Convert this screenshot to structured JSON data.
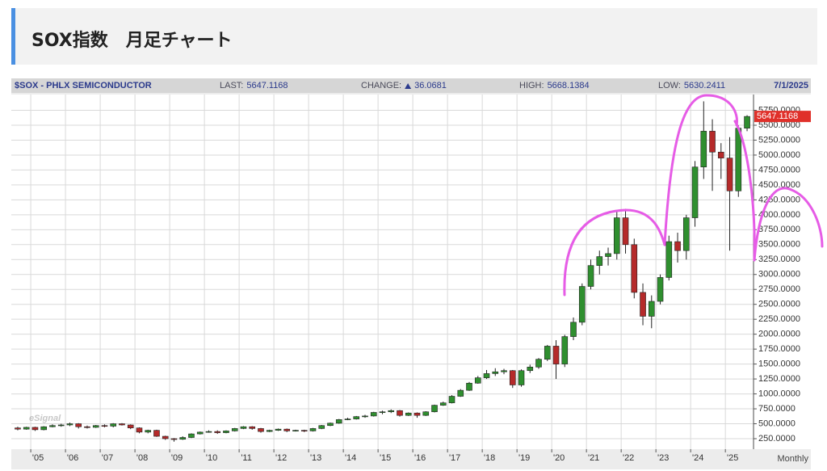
{
  "page": {
    "title": "SOX指数　月足チャート"
  },
  "chart_data": {
    "type": "candlestick",
    "title": "$SOX - PHLX SEMICONDUCTOR",
    "date": "7/1/2025",
    "stats": [
      {
        "label": "LAST:",
        "value": 5647.1168
      },
      {
        "label": "CHANGE:",
        "value": 36.0681
      },
      {
        "label": "HIGH:",
        "value": 5668.1384
      },
      {
        "label": "LOW:",
        "value": 5630.2411
      }
    ],
    "last_price": 5647.1168,
    "watermark": "eSignal",
    "x_unit_label": "Monthly",
    "up_color": "#2f8f2f",
    "down_color": "#b52a2a",
    "grid": true,
    "xlim": [
      2004.44,
      2025.81
    ],
    "ylim": [
      74,
      6014
    ],
    "xticks": [
      {
        "value": 2005,
        "label": "'05"
      },
      {
        "value": 2006,
        "label": "'06"
      },
      {
        "value": 2007,
        "label": "'07"
      },
      {
        "value": 2008,
        "label": "'08"
      },
      {
        "value": 2009,
        "label": "'09"
      },
      {
        "value": 2010,
        "label": "'10"
      },
      {
        "value": 2011,
        "label": "'11"
      },
      {
        "value": 2012,
        "label": "'12"
      },
      {
        "value": 2013,
        "label": "'13"
      },
      {
        "value": 2014,
        "label": "'14"
      },
      {
        "value": 2015,
        "label": "'15"
      },
      {
        "value": 2016,
        "label": "'16"
      },
      {
        "value": 2017,
        "label": "'17"
      },
      {
        "value": 2018,
        "label": "'18"
      },
      {
        "value": 2019,
        "label": "'19"
      },
      {
        "value": 2020,
        "label": "'20"
      },
      {
        "value": 2021,
        "label": "'21"
      },
      {
        "value": 2022,
        "label": "'22"
      },
      {
        "value": 2023,
        "label": "'23"
      },
      {
        "value": 2024,
        "label": "'24"
      },
      {
        "value": 2025,
        "label": "'25"
      }
    ],
    "yticks": [
      {
        "value": 250,
        "label": "250.0000"
      },
      {
        "value": 500,
        "label": "500.0000"
      },
      {
        "value": 750,
        "label": "750.0000"
      },
      {
        "value": 1000,
        "label": "1000.0000"
      },
      {
        "value": 1250,
        "label": "1250.0000"
      },
      {
        "value": 1500,
        "label": "1500.0000"
      },
      {
        "value": 1750,
        "label": "1750.0000"
      },
      {
        "value": 2000,
        "label": "2000.0000"
      },
      {
        "value": 2250,
        "label": "2250.0000"
      },
      {
        "value": 2500,
        "label": "2500.0000"
      },
      {
        "value": 2750,
        "label": "2750.0000"
      },
      {
        "value": 3000,
        "label": "3000.0000"
      },
      {
        "value": 3250,
        "label": "3250.0000"
      },
      {
        "value": 3500,
        "label": "3500.0000"
      },
      {
        "value": 3750,
        "label": "3750.0000"
      },
      {
        "value": 4000,
        "label": "4000.0000"
      },
      {
        "value": 4250,
        "label": "4250.0000"
      },
      {
        "value": 4500,
        "label": "4500.0000"
      },
      {
        "value": 4750,
        "label": "4750.0000"
      },
      {
        "value": 5000,
        "label": "5000.0000"
      },
      {
        "value": 5250,
        "label": "5250.0000"
      },
      {
        "value": 5500,
        "label": "5500.0000"
      },
      {
        "value": 5750,
        "label": "5750.0000"
      }
    ],
    "x": [
      2004.625,
      2004.875,
      2005.125,
      2005.375,
      2005.625,
      2005.875,
      2006.125,
      2006.375,
      2006.625,
      2006.875,
      2007.125,
      2007.375,
      2007.625,
      2007.875,
      2008.125,
      2008.375,
      2008.625,
      2008.875,
      2009.125,
      2009.375,
      2009.625,
      2009.875,
      2010.125,
      2010.375,
      2010.625,
      2010.875,
      2011.125,
      2011.375,
      2011.625,
      2011.875,
      2012.125,
      2012.375,
      2012.625,
      2012.875,
      2013.125,
      2013.375,
      2013.625,
      2013.875,
      2014.125,
      2014.375,
      2014.625,
      2014.875,
      2015.125,
      2015.375,
      2015.625,
      2015.875,
      2016.125,
      2016.375,
      2016.625,
      2016.875,
      2017.125,
      2017.375,
      2017.625,
      2017.875,
      2018.125,
      2018.375,
      2018.625,
      2018.875,
      2019.125,
      2019.375,
      2019.625,
      2019.875,
      2020.125,
      2020.375,
      2020.625,
      2020.875,
      2021.125,
      2021.375,
      2021.625,
      2021.875,
      2022.125,
      2022.375,
      2022.625,
      2022.875,
      2023.125,
      2023.375,
      2023.625,
      2023.875,
      2024.125,
      2024.375,
      2024.625,
      2024.875,
      2025.125,
      2025.375,
      2025.625
    ],
    "open": [
      430,
      410,
      440,
      400,
      450,
      470,
      480,
      500,
      450,
      440,
      470,
      460,
      500,
      480,
      430,
      360,
      390,
      290,
      250,
      240,
      270,
      330,
      360,
      370,
      350,
      380,
      420,
      450,
      420,
      370,
      390,
      410,
      380,
      390,
      380,
      420,
      470,
      510,
      570,
      580,
      620,
      630,
      690,
      700,
      720,
      640,
      680,
      640,
      700,
      810,
      850,
      960,
      1060,
      1180,
      1270,
      1340,
      1370,
      1390,
      1150,
      1390,
      1450,
      1580,
      1800,
      1500,
      1960,
      2200,
      2800,
      3150,
      3300,
      3350,
      3950,
      3500,
      2700,
      2300,
      2550,
      2950,
      3550,
      3400,
      3950,
      4800,
      5400,
      5050,
      4950,
      4400,
      5450
    ],
    "high": [
      450,
      450,
      450,
      460,
      490,
      500,
      520,
      510,
      470,
      480,
      490,
      510,
      510,
      490,
      440,
      400,
      400,
      300,
      260,
      290,
      340,
      370,
      390,
      390,
      390,
      430,
      460,
      460,
      430,
      400,
      420,
      420,
      400,
      400,
      430,
      480,
      520,
      580,
      600,
      630,
      650,
      700,
      720,
      740,
      730,
      690,
      690,
      710,
      820,
      870,
      980,
      1080,
      1200,
      1300,
      1400,
      1430,
      1420,
      1400,
      1410,
      1490,
      1600,
      1820,
      1900,
      1990,
      2280,
      2850,
      3250,
      3400,
      3450,
      4050,
      4100,
      3600,
      2850,
      2650,
      3000,
      3650,
      3700,
      4000,
      4900,
      5900,
      5600,
      5200,
      5300,
      5500,
      5668
    ],
    "low": [
      390,
      400,
      380,
      390,
      440,
      450,
      460,
      420,
      420,
      430,
      440,
      440,
      470,
      410,
      340,
      340,
      280,
      230,
      200,
      230,
      260,
      320,
      350,
      330,
      340,
      370,
      410,
      400,
      350,
      360,
      380,
      360,
      370,
      360,
      370,
      410,
      460,
      500,
      560,
      570,
      600,
      620,
      660,
      680,
      620,
      630,
      600,
      630,
      690,
      800,
      840,
      950,
      1050,
      1170,
      1250,
      1300,
      1330,
      1100,
      1120,
      1350,
      1420,
      1550,
      1250,
      1450,
      1900,
      2150,
      2750,
      3000,
      3150,
      3250,
      3350,
      2600,
      2150,
      2100,
      2500,
      2900,
      3200,
      3250,
      3800,
      4600,
      4400,
      4600,
      3400,
      4300,
      5400
    ],
    "close": [
      410,
      440,
      400,
      450,
      470,
      480,
      500,
      450,
      440,
      470,
      460,
      500,
      480,
      430,
      360,
      390,
      290,
      250,
      240,
      270,
      330,
      360,
      370,
      350,
      380,
      420,
      450,
      420,
      370,
      390,
      410,
      380,
      390,
      380,
      420,
      470,
      510,
      570,
      580,
      620,
      630,
      690,
      700,
      720,
      640,
      680,
      640,
      700,
      810,
      850,
      960,
      1060,
      1180,
      1270,
      1340,
      1370,
      1390,
      1150,
      1390,
      1450,
      1580,
      1800,
      1500,
      1960,
      2200,
      2800,
      3150,
      3300,
      3350,
      3950,
      3500,
      2700,
      2300,
      2550,
      2950,
      3550,
      3400,
      3950,
      4800,
      5400,
      5050,
      4950,
      4400,
      5450,
      5647
    ]
  }
}
